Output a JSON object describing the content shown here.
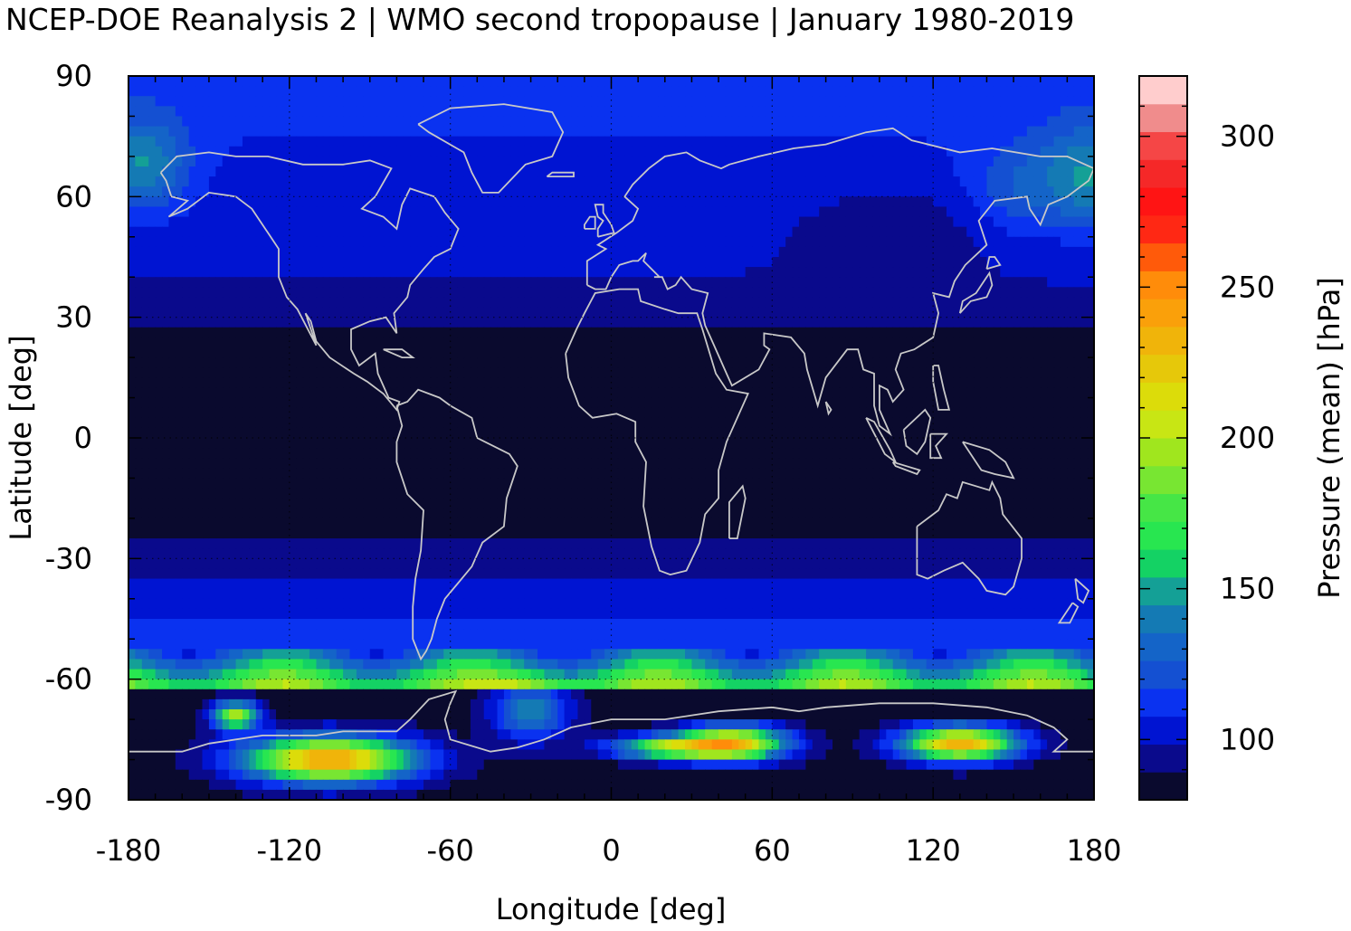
{
  "title": "NCEP-DOE Reanalysis 2 | WMO second tropopause | January 1980-2019",
  "chart_data": {
    "type": "heatmap",
    "title": "NCEP-DOE Reanalysis 2 | WMO second tropopause | January 1980-2019",
    "xlabel": "Longitude [deg]",
    "ylabel": "Latitude [deg]",
    "xlim": [
      -180,
      180
    ],
    "ylim": [
      -90,
      90
    ],
    "x_ticks": [
      "-180",
      "-120",
      "-60",
      "0",
      "60",
      "120",
      "180"
    ],
    "y_ticks": [
      "90",
      "60",
      "30",
      "0",
      "-30",
      "-60",
      "-90"
    ],
    "colorbar": {
      "label": "Pressure (mean) [hPa]",
      "range": [
        80,
        320
      ],
      "ticks": [
        "100",
        "150",
        "200",
        "250",
        "300"
      ],
      "colors": [
        "#0a0a2e",
        "#0a0a8c",
        "#0014d2",
        "#0a32f0",
        "#1450d2",
        "#1464c8",
        "#147ab4",
        "#14a096",
        "#14d264",
        "#28e650",
        "#46e646",
        "#78e632",
        "#a0e61e",
        "#c8e614",
        "#dcdc0a",
        "#e6c80a",
        "#f0b40a",
        "#faa00a",
        "#ff8c0a",
        "#ff5a0a",
        "#ff2814",
        "#ff1414",
        "#f52828",
        "#f54646",
        "#f08c8c",
        "#ffcdcd"
      ]
    },
    "grid": true,
    "coastlines": true
  }
}
